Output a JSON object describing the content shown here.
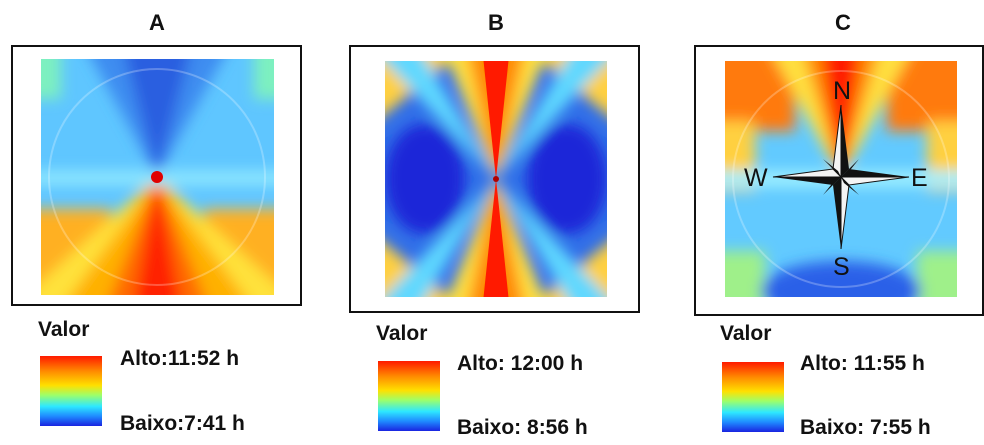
{
  "panels": [
    {
      "id": "A",
      "label": "A",
      "legend": {
        "title": "Valor",
        "high": "Alto:11:52 h",
        "low": "Baixo:7:41 h"
      }
    },
    {
      "id": "B",
      "label": "B",
      "legend": {
        "title": "Valor",
        "high": "Alto: 12:00 h",
        "low": "Baixo: 8:56 h"
      }
    },
    {
      "id": "C",
      "label": "C",
      "legend": {
        "title": "Valor",
        "high": "Alto: 11:55 h",
        "low": "Baixo: 7:55 h"
      },
      "compass": {
        "north": "N",
        "south": "S",
        "east": "E",
        "west": "W"
      }
    }
  ],
  "colors": {
    "high": "#ff1a00",
    "mid_orange": "#ff8c00",
    "mid_yellow": "#ffe000",
    "mid_green": "#9dff6a",
    "mid_cyan": "#2ee8ff",
    "low_blue": "#1f8bff",
    "low_deep": "#1a24e0"
  }
}
